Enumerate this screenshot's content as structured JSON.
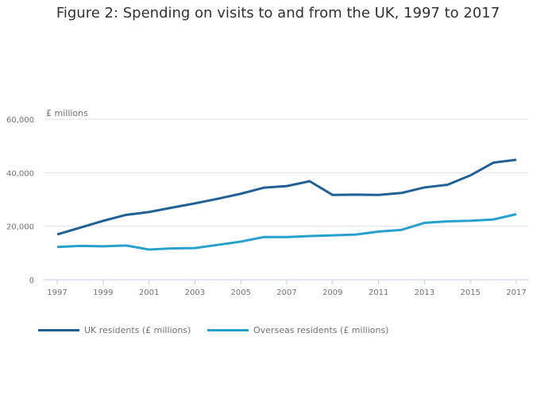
{
  "chart_data": {
    "type": "line",
    "title": "Figure 2: Spending on visits to and from the UK, 1997 to 2017",
    "ylabel": "£ millions",
    "xlabel": "",
    "x": [
      1997,
      1998,
      1999,
      2000,
      2001,
      2002,
      2003,
      2004,
      2005,
      2006,
      2007,
      2008,
      2009,
      2010,
      2011,
      2012,
      2013,
      2014,
      2015,
      2016,
      2017
    ],
    "x_tick_labels": [
      "1997",
      "1999",
      "2001",
      "2003",
      "2005",
      "2007",
      "2009",
      "2011",
      "2013",
      "2015",
      "2017"
    ],
    "y_tick_labels": [
      "0",
      "20,000",
      "40,000",
      "60,000"
    ],
    "y_ticks": [
      0,
      20000,
      40000,
      60000
    ],
    "ylim": [
      0,
      60000
    ],
    "grid": true,
    "legend_position": "bottom-left",
    "series": [
      {
        "name": "UK residents (£ millions)",
        "color": "#206095",
        "values": [
          16931,
          19489,
          22020,
          24251,
          25332,
          26962,
          28550,
          30285,
          32154,
          34411,
          35013,
          36838,
          31694,
          31820,
          31701,
          32450,
          34510,
          35499,
          39012,
          43766,
          44839
        ]
      },
      {
        "name": "Overseas residents (£ millions)",
        "color": "#27a0cc",
        "values": [
          12244,
          12671,
          12498,
          12805,
          11306,
          11737,
          11855,
          13047,
          14248,
          15957,
          15960,
          16323,
          16592,
          16899,
          17998,
          18640,
          21258,
          21849,
          22072,
          22543,
          24507
        ]
      }
    ]
  }
}
